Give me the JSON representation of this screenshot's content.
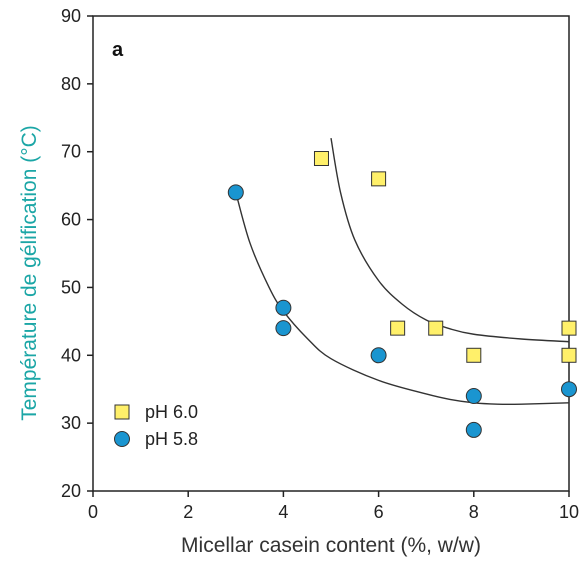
{
  "chart_data": {
    "type": "scatter",
    "panel_label": "a",
    "xlabel": "Micellar casein content (%, w/w)",
    "ylabel": "Température de gélification (°C)",
    "xlim": [
      0,
      10
    ],
    "ylim": [
      20,
      90
    ],
    "x_ticks": [
      0,
      2,
      4,
      6,
      8,
      10
    ],
    "y_ticks": [
      20,
      30,
      40,
      50,
      60,
      70,
      80,
      90
    ],
    "grid": false,
    "legend_position": "bottom-left",
    "series": [
      {
        "name": "pH 6.0",
        "marker": "square",
        "color": "#FFF06A",
        "points": [
          [
            4.8,
            69
          ],
          [
            6.0,
            66
          ],
          [
            6.4,
            44
          ],
          [
            7.2,
            44
          ],
          [
            8.0,
            40
          ],
          [
            10.0,
            44
          ],
          [
            10.0,
            40
          ]
        ],
        "fit_curve": [
          [
            5.0,
            72
          ],
          [
            5.2,
            64
          ],
          [
            5.5,
            57
          ],
          [
            6.0,
            51
          ],
          [
            6.5,
            47.5
          ],
          [
            7.0,
            45.2
          ],
          [
            7.5,
            43.9
          ],
          [
            8.0,
            43.1
          ],
          [
            9.0,
            42.4
          ],
          [
            10.0,
            42
          ]
        ]
      },
      {
        "name": "pH 5.8",
        "marker": "circle",
        "color": "#1A95D0",
        "points": [
          [
            3.0,
            64
          ],
          [
            4.0,
            47
          ],
          [
            4.0,
            44
          ],
          [
            6.0,
            40
          ],
          [
            8.0,
            34
          ],
          [
            8.0,
            29
          ],
          [
            10.0,
            35
          ]
        ],
        "fit_curve": [
          [
            3.0,
            64
          ],
          [
            3.3,
            56.5
          ],
          [
            3.7,
            50
          ],
          [
            4.0,
            46.5
          ],
          [
            4.5,
            42.5
          ],
          [
            5.0,
            39.5
          ],
          [
            6.0,
            36.3
          ],
          [
            7.0,
            34.3
          ],
          [
            7.5,
            33.5
          ],
          [
            8.0,
            33
          ],
          [
            8.5,
            32.8
          ],
          [
            9.0,
            32.8
          ],
          [
            10.0,
            33
          ]
        ]
      }
    ]
  },
  "colors": {
    "ylabel_color": "#1BA6A6",
    "axis_color": "#222222",
    "fit_line_color": "#333333",
    "marker_edge": "#333333"
  }
}
